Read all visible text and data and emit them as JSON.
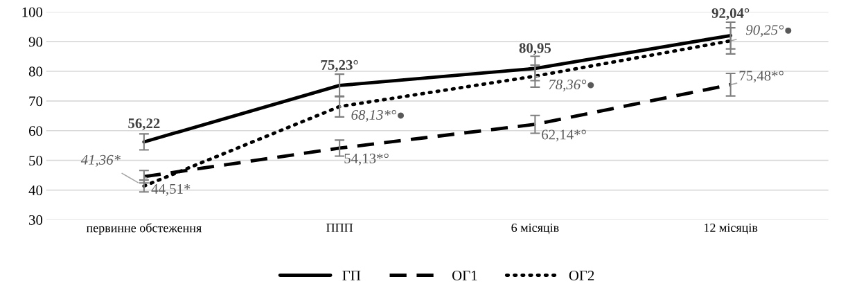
{
  "chart_data": {
    "type": "line",
    "categories": [
      "первинне обстеження",
      "ППП",
      "6 місяців",
      "12 місяців"
    ],
    "series": [
      {
        "name": "ГП",
        "color": "#000000",
        "line_style": "solid",
        "values": [
          56.22,
          75.23,
          80.95,
          92.04
        ],
        "errors": [
          2.7,
          3.8,
          4.1,
          4.5
        ],
        "value_labels": [
          "56,22",
          "75,23°",
          "80,95",
          "92,04°"
        ]
      },
      {
        "name": "ОГ1",
        "color": "#000000",
        "line_style": "dashed",
        "values": [
          44.51,
          54.13,
          62.14,
          75.48
        ],
        "errors": [
          2.1,
          2.7,
          3.0,
          3.8
        ],
        "value_labels": [
          "44,51*",
          "54,13*°",
          "62,14*°",
          "75,48*°"
        ]
      },
      {
        "name": "ОГ2",
        "color": "#000000",
        "line_style": "dotted",
        "values": [
          41.36,
          68.13,
          78.36,
          90.25
        ],
        "errors": [
          2.0,
          3.5,
          3.7,
          4.4
        ],
        "value_labels": [
          "41,36*",
          "68,13*°●",
          "78,36°●",
          "90,25°●"
        ]
      }
    ],
    "ylim": [
      30,
      100
    ],
    "yticks": [
      30,
      40,
      50,
      60,
      70,
      80,
      90,
      100
    ],
    "grid": "y",
    "legend": "bottom",
    "marker": "none"
  }
}
